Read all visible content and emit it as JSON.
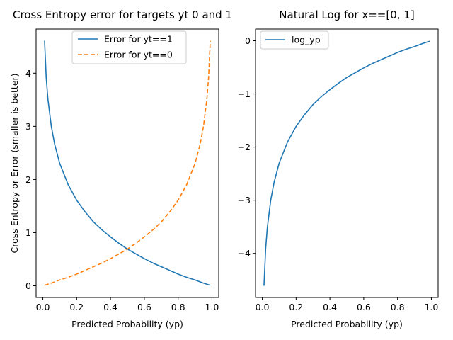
{
  "chart_data": [
    {
      "type": "line",
      "title": "Cross Entropy error for targets yt 0 and 1",
      "xlabel": "Predicted Probability (yp)",
      "ylabel": "Cross Entropy or Error (smaller is better)",
      "xlim": [
        -0.04,
        1.04
      ],
      "ylim": [
        -0.22,
        4.83
      ],
      "xticks": [
        "0.0",
        "0.2",
        "0.4",
        "0.6",
        "0.8",
        "1.0"
      ],
      "xtick_values": [
        0,
        0.2,
        0.4,
        0.6,
        0.8,
        1.0
      ],
      "yticks": [
        "0",
        "1",
        "2",
        "3",
        "4"
      ],
      "ytick_values": [
        0,
        1,
        2,
        3,
        4
      ],
      "grid": false,
      "legend": "top-center",
      "series": [
        {
          "name": "Error for yt==1",
          "color": "#1f77b4",
          "dash": "solid",
          "x": [
            0.01,
            0.02,
            0.03,
            0.05,
            0.07,
            0.1,
            0.15,
            0.2,
            0.25,
            0.3,
            0.35,
            0.4,
            0.45,
            0.5,
            0.55,
            0.6,
            0.65,
            0.7,
            0.75,
            0.8,
            0.85,
            0.9,
            0.95,
            0.99
          ],
          "values": [
            4.61,
            3.91,
            3.51,
            3.0,
            2.66,
            2.3,
            1.9,
            1.61,
            1.39,
            1.2,
            1.05,
            0.92,
            0.8,
            0.69,
            0.6,
            0.51,
            0.43,
            0.36,
            0.29,
            0.22,
            0.16,
            0.11,
            0.05,
            0.01
          ]
        },
        {
          "name": "Error for yt==0",
          "color": "#ff7f0e",
          "dash": "dashed",
          "x": [
            0.01,
            0.05,
            0.1,
            0.15,
            0.2,
            0.25,
            0.3,
            0.35,
            0.4,
            0.45,
            0.5,
            0.55,
            0.6,
            0.65,
            0.7,
            0.75,
            0.8,
            0.85,
            0.9,
            0.93,
            0.95,
            0.97,
            0.98,
            0.99
          ],
          "values": [
            0.01,
            0.05,
            0.11,
            0.16,
            0.22,
            0.29,
            0.36,
            0.43,
            0.51,
            0.6,
            0.69,
            0.8,
            0.92,
            1.05,
            1.2,
            1.39,
            1.61,
            1.9,
            2.3,
            2.66,
            3.0,
            3.51,
            3.91,
            4.61
          ]
        }
      ]
    },
    {
      "type": "line",
      "title": "Natural Log for x==[0, 1]",
      "xlabel": "Predicted Probability (yp)",
      "ylabel": "",
      "xlim": [
        -0.04,
        1.04
      ],
      "ylim": [
        -4.83,
        0.22
      ],
      "xticks": [
        "0.0",
        "0.2",
        "0.4",
        "0.6",
        "0.8",
        "1.0"
      ],
      "xtick_values": [
        0,
        0.2,
        0.4,
        0.6,
        0.8,
        1.0
      ],
      "yticks": [
        "0",
        "−1",
        "−2",
        "−3",
        "−4"
      ],
      "ytick_values": [
        0,
        -1,
        -2,
        -3,
        -4
      ],
      "grid": false,
      "legend": "top-left",
      "series": [
        {
          "name": "log_yp",
          "color": "#1f77b4",
          "dash": "solid",
          "x": [
            0.01,
            0.02,
            0.03,
            0.05,
            0.07,
            0.1,
            0.15,
            0.2,
            0.25,
            0.3,
            0.35,
            0.4,
            0.45,
            0.5,
            0.55,
            0.6,
            0.65,
            0.7,
            0.75,
            0.8,
            0.85,
            0.9,
            0.95,
            0.99
          ],
          "values": [
            -4.61,
            -3.91,
            -3.51,
            -3.0,
            -2.66,
            -2.3,
            -1.9,
            -1.61,
            -1.39,
            -1.2,
            -1.05,
            -0.92,
            -0.8,
            -0.69,
            -0.6,
            -0.51,
            -0.43,
            -0.36,
            -0.29,
            -0.22,
            -0.16,
            -0.11,
            -0.05,
            -0.01
          ]
        }
      ]
    }
  ]
}
